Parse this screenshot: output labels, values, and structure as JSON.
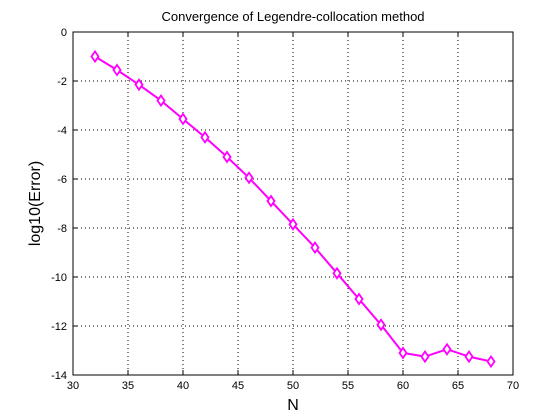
{
  "chart_data": {
    "type": "line",
    "title": "Convergence of Legendre-collocation method",
    "xlabel": "N",
    "ylabel": "log10(Error)",
    "xlim": [
      30,
      70
    ],
    "ylim": [
      -14,
      0
    ],
    "xticks": [
      30,
      35,
      40,
      45,
      50,
      55,
      60,
      65,
      70
    ],
    "yticks": [
      0,
      -2,
      -4,
      -6,
      -8,
      -10,
      -12,
      -14
    ],
    "grid": true,
    "series": [
      {
        "name": "log10(Error)",
        "color": "#ff00ff",
        "marker": "diamond",
        "x": [
          32,
          34,
          36,
          38,
          40,
          42,
          44,
          46,
          48,
          50,
          52,
          54,
          56,
          58,
          60,
          62,
          64,
          66,
          68
        ],
        "values": [
          -1.0,
          -1.55,
          -2.15,
          -2.8,
          -3.55,
          -4.3,
          -5.1,
          -5.95,
          -6.9,
          -7.85,
          -8.8,
          -9.85,
          -10.9,
          -11.95,
          -13.1,
          -13.25,
          -12.95,
          -13.25,
          -13.45
        ]
      }
    ]
  }
}
